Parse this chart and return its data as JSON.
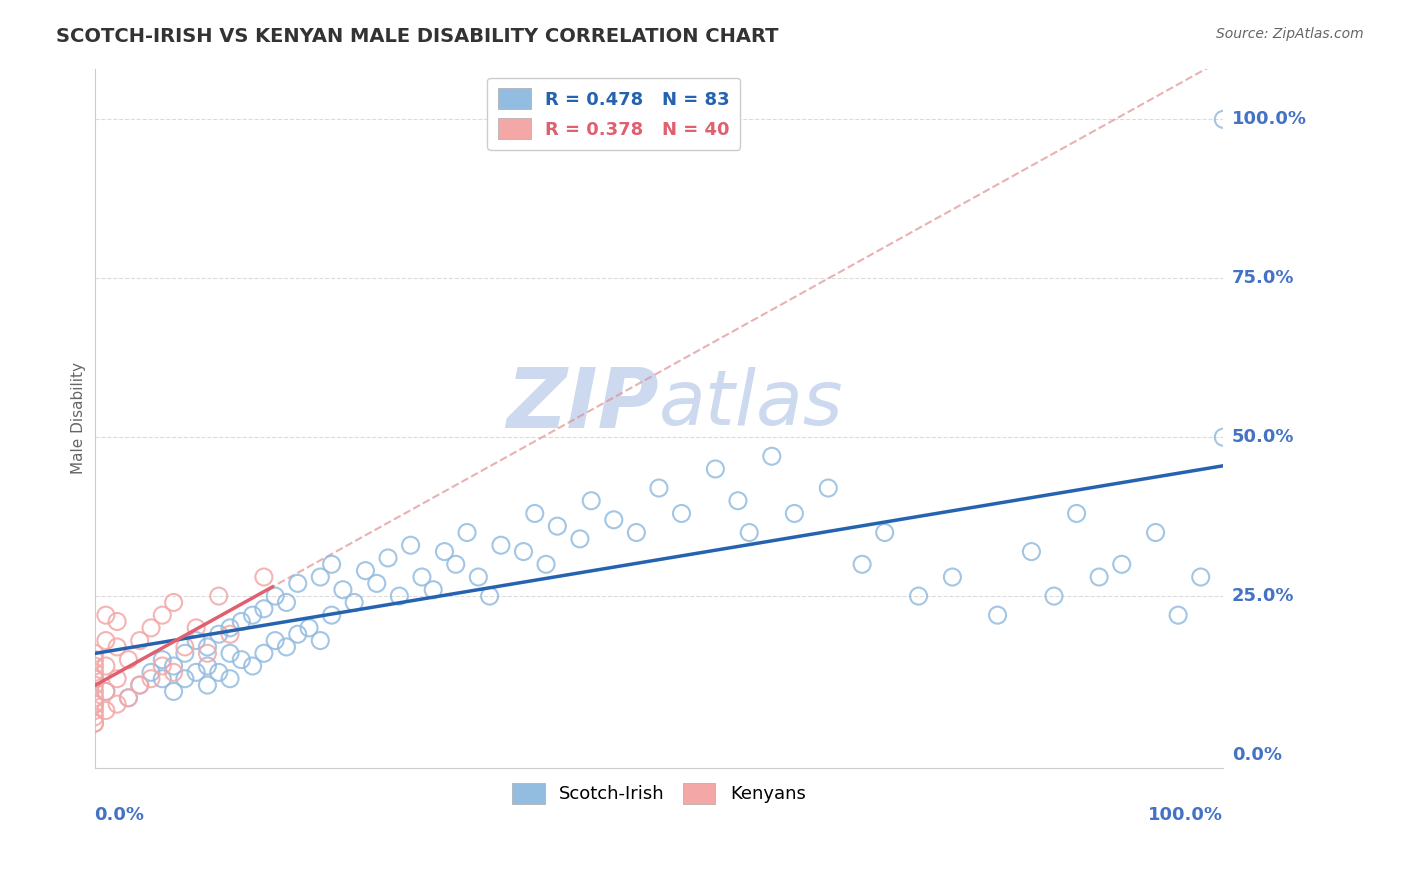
{
  "title": "SCOTCH-IRISH VS KENYAN MALE DISABILITY CORRELATION CHART",
  "source": "Source: ZipAtlas.com",
  "ylabel": "Male Disability",
  "scotch_irish_R": 0.478,
  "scotch_irish_N": 83,
  "kenyan_R": 0.378,
  "kenyan_N": 40,
  "scotch_irish_color": "#92bce0",
  "kenyan_color": "#f4a7a7",
  "scotch_irish_line_color": "#2563b0",
  "kenyan_line_color": "#e06070",
  "kenyan_dash_color": "#e09090",
  "grid_color": "#cccccc",
  "background_color": "#ffffff",
  "axis_label_color": "#4472c4",
  "watermark_color": "#ccd9ee",
  "xlim": [
    0.0,
    1.0
  ],
  "ylim": [
    -0.02,
    1.08
  ],
  "si_x": [
    0.01,
    0.03,
    0.04,
    0.05,
    0.06,
    0.06,
    0.07,
    0.07,
    0.08,
    0.08,
    0.09,
    0.09,
    0.1,
    0.1,
    0.1,
    0.11,
    0.11,
    0.12,
    0.12,
    0.12,
    0.13,
    0.13,
    0.14,
    0.14,
    0.15,
    0.15,
    0.16,
    0.16,
    0.17,
    0.17,
    0.18,
    0.18,
    0.19,
    0.2,
    0.2,
    0.21,
    0.21,
    0.22,
    0.23,
    0.24,
    0.25,
    0.26,
    0.27,
    0.28,
    0.29,
    0.3,
    0.31,
    0.32,
    0.33,
    0.34,
    0.35,
    0.36,
    0.38,
    0.39,
    0.4,
    0.41,
    0.43,
    0.44,
    0.46,
    0.48,
    0.5,
    0.52,
    0.55,
    0.57,
    0.58,
    0.6,
    0.62,
    0.65,
    0.68,
    0.7,
    0.73,
    0.76,
    0.8,
    0.83,
    0.85,
    0.87,
    0.89,
    0.91,
    0.94,
    0.96,
    0.98,
    1.0,
    1.0
  ],
  "si_y": [
    0.1,
    0.09,
    0.11,
    0.13,
    0.12,
    0.15,
    0.1,
    0.14,
    0.12,
    0.16,
    0.13,
    0.18,
    0.11,
    0.14,
    0.17,
    0.13,
    0.19,
    0.12,
    0.16,
    0.2,
    0.15,
    0.21,
    0.14,
    0.22,
    0.16,
    0.23,
    0.18,
    0.25,
    0.17,
    0.24,
    0.19,
    0.27,
    0.2,
    0.18,
    0.28,
    0.22,
    0.3,
    0.26,
    0.24,
    0.29,
    0.27,
    0.31,
    0.25,
    0.33,
    0.28,
    0.26,
    0.32,
    0.3,
    0.35,
    0.28,
    0.25,
    0.33,
    0.32,
    0.38,
    0.3,
    0.36,
    0.34,
    0.4,
    0.37,
    0.35,
    0.42,
    0.38,
    0.45,
    0.4,
    0.35,
    0.47,
    0.38,
    0.42,
    0.3,
    0.35,
    0.25,
    0.28,
    0.22,
    0.32,
    0.25,
    0.38,
    0.28,
    0.3,
    0.35,
    0.22,
    0.28,
    0.5,
    1.0
  ],
  "ke_x": [
    0.0,
    0.0,
    0.0,
    0.0,
    0.0,
    0.0,
    0.0,
    0.0,
    0.0,
    0.0,
    0.0,
    0.0,
    0.0,
    0.0,
    0.0,
    0.01,
    0.01,
    0.01,
    0.01,
    0.01,
    0.02,
    0.02,
    0.02,
    0.02,
    0.03,
    0.03,
    0.04,
    0.04,
    0.05,
    0.05,
    0.06,
    0.06,
    0.07,
    0.07,
    0.08,
    0.09,
    0.1,
    0.11,
    0.12,
    0.15
  ],
  "ke_y": [
    0.05,
    0.06,
    0.07,
    0.08,
    0.09,
    0.1,
    0.11,
    0.12,
    0.13,
    0.14,
    0.15,
    0.05,
    0.08,
    0.12,
    0.16,
    0.07,
    0.1,
    0.14,
    0.18,
    0.22,
    0.08,
    0.12,
    0.17,
    0.21,
    0.09,
    0.15,
    0.11,
    0.18,
    0.12,
    0.2,
    0.14,
    0.22,
    0.13,
    0.24,
    0.17,
    0.2,
    0.16,
    0.25,
    0.19,
    0.28
  ]
}
